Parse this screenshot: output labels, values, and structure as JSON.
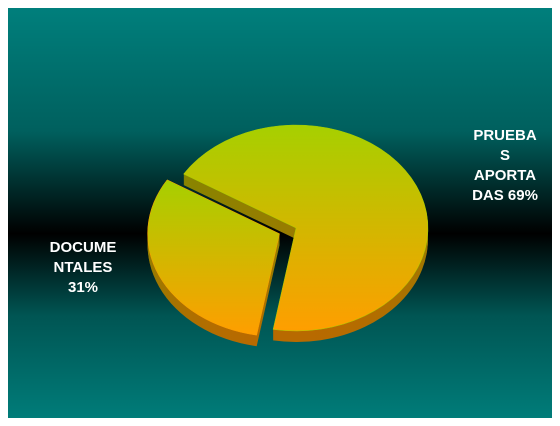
{
  "chart_data": {
    "type": "pie",
    "categories": [
      "PRUEBAS APORTADAS",
      "DOCUMENTALES"
    ],
    "values": [
      69,
      31
    ],
    "value_labels": [
      "69%",
      "31%"
    ],
    "colors": [
      "#a6d000",
      "#ff9e00"
    ],
    "exploded": [
      false,
      true
    ]
  }
}
